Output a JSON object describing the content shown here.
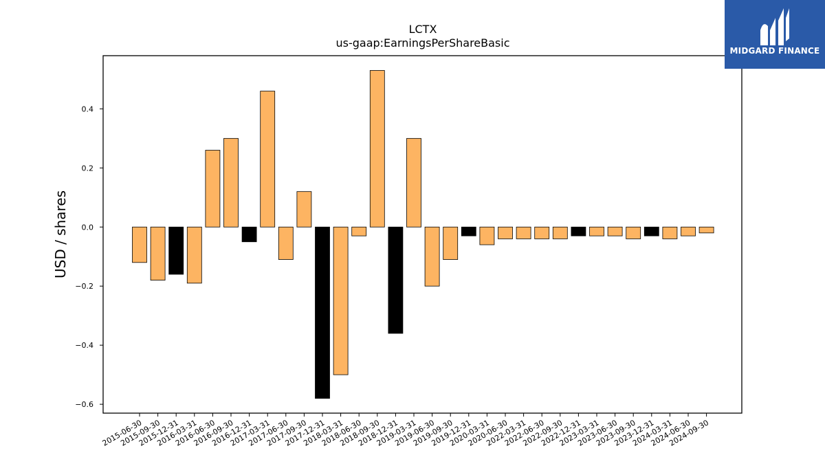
{
  "brand": {
    "name": "MIDGARD FINANCE",
    "color": "#2a5aa8"
  },
  "chart_data": {
    "type": "bar",
    "title": "LCTX",
    "subtitle": "us-gaap:EarningsPerShareBasic",
    "xlabel": "",
    "ylabel": "USD / shares",
    "ylim": [
      -0.63,
      0.58
    ],
    "yticks": [
      -0.6,
      -0.4,
      -0.2,
      0.0,
      0.2,
      0.4
    ],
    "grid": false,
    "colors": {
      "quarter": "#fdb462",
      "annual": "#000000",
      "edge": "#000000"
    },
    "categories": [
      "2015-06-30",
      "2015-09-30",
      "2015-12-31",
      "2016-03-31",
      "2016-06-30",
      "2016-09-30",
      "2016-12-31",
      "2017-03-31",
      "2017-06-30",
      "2017-09-30",
      "2017-12-31",
      "2018-03-31",
      "2018-06-30",
      "2018-09-30",
      "2018-12-31",
      "2019-03-31",
      "2019-06-30",
      "2019-09-30",
      "2019-12-31",
      "2020-03-31",
      "2020-06-30",
      "2022-03-31",
      "2022-06-30",
      "2022-09-30",
      "2022-12-31",
      "2023-03-31",
      "2023-06-30",
      "2023-09-30",
      "2023-12-31",
      "2024-03-31",
      "2024-06-30",
      "2024-09-30"
    ],
    "values": [
      -0.12,
      -0.18,
      -0.16,
      -0.19,
      0.26,
      0.3,
      -0.05,
      0.46,
      -0.11,
      0.12,
      -0.58,
      -0.5,
      -0.03,
      0.53,
      -0.36,
      0.3,
      -0.2,
      -0.11,
      -0.03,
      -0.06,
      -0.04,
      -0.04,
      -0.04,
      -0.04,
      -0.03,
      -0.03,
      -0.03,
      -0.04,
      -0.03,
      -0.04,
      -0.03,
      -0.02
    ],
    "annual": [
      false,
      false,
      true,
      false,
      false,
      false,
      true,
      false,
      false,
      false,
      true,
      false,
      false,
      false,
      true,
      false,
      false,
      false,
      true,
      false,
      false,
      false,
      false,
      false,
      true,
      false,
      false,
      false,
      true,
      false,
      false,
      false
    ]
  }
}
